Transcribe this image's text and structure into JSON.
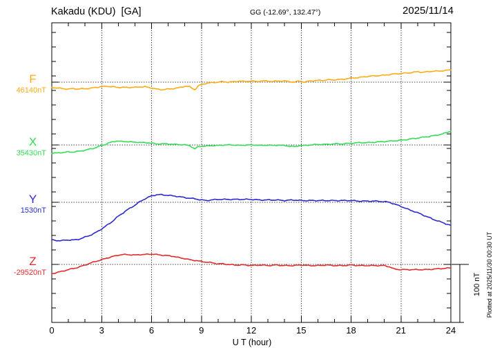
{
  "header": {
    "title": "Kakadu (KDU)  [GA]",
    "coordinates": "GG (-12.69°, 132.47°)",
    "date": "2025/11/14"
  },
  "footer": {
    "xlabel": "U T (hour)"
  },
  "side": {
    "scale_label": "100 nT",
    "plotted_note": "Plotted at 2025/11/30 00:30 UT"
  },
  "chart_data": {
    "type": "line",
    "title": "Kakadu (KDU) [GA] magnetogram",
    "station": "Kakadu (KDU)",
    "agency": "GA",
    "date": "2025/11/14",
    "coordinates": "GG (-12.69°, 132.47°)",
    "xlabel": "U T (hour)",
    "x_range": [
      0,
      24
    ],
    "x_ticks": [
      0,
      3,
      6,
      9,
      12,
      15,
      18,
      21,
      24
    ],
    "x_minor_tick_hours": 1,
    "grid": "dotted vertical lines every 3 hours; dotted horizontal baseline per channel",
    "legend_position": "left margin channel labels",
    "y_unit": "nT offset from channel baseline",
    "y_tick_spacing_nT": 25,
    "scale_bar_nT": 100,
    "series": [
      {
        "name": "F",
        "baseline_label": "46140nT",
        "baseline_nT": 46140,
        "color": "#FFAA11",
        "points": [
          [
            0,
            -9
          ],
          [
            0.3,
            -10
          ],
          [
            0.6,
            -11
          ],
          [
            1,
            -12
          ],
          [
            1.3,
            -11
          ],
          [
            1.6,
            -12
          ],
          [
            2,
            -11
          ],
          [
            2.3,
            -11
          ],
          [
            2.6,
            -9
          ],
          [
            3,
            -8
          ],
          [
            3.3,
            -7
          ],
          [
            3.6,
            -8
          ],
          [
            4,
            -9
          ],
          [
            4.3,
            -9
          ],
          [
            4.6,
            -9
          ],
          [
            5,
            -9
          ],
          [
            5.3,
            -8
          ],
          [
            5.6,
            -8
          ],
          [
            6,
            -10
          ],
          [
            6.3,
            -12
          ],
          [
            6.6,
            -13
          ],
          [
            7,
            -12
          ],
          [
            7.3,
            -11
          ],
          [
            7.6,
            -10
          ],
          [
            8,
            -7
          ],
          [
            8.3,
            -8
          ],
          [
            8.6,
            -13
          ],
          [
            8.8,
            -7
          ],
          [
            9,
            -4
          ],
          [
            9.3,
            -2
          ],
          [
            9.6,
            -1
          ],
          [
            10,
            0
          ],
          [
            10.3,
            1
          ],
          [
            10.6,
            0
          ],
          [
            11,
            1
          ],
          [
            11.3,
            2
          ],
          [
            11.6,
            1
          ],
          [
            12,
            2
          ],
          [
            12.3,
            1
          ],
          [
            12.6,
            2
          ],
          [
            13,
            2
          ],
          [
            13.3,
            1
          ],
          [
            13.6,
            2
          ],
          [
            14,
            2
          ],
          [
            14.3,
            1
          ],
          [
            14.6,
            0
          ],
          [
            14.9,
            2
          ],
          [
            15.2,
            0
          ],
          [
            15.5,
            2
          ],
          [
            16,
            3
          ],
          [
            16.3,
            3
          ],
          [
            16.6,
            4
          ],
          [
            17,
            4
          ],
          [
            17.5,
            5
          ],
          [
            18,
            7
          ],
          [
            18.5,
            8
          ],
          [
            19,
            10
          ],
          [
            19.5,
            11
          ],
          [
            20,
            12
          ],
          [
            20.5,
            14
          ],
          [
            21,
            15
          ],
          [
            21.5,
            16
          ],
          [
            22,
            18
          ],
          [
            22.3,
            17
          ],
          [
            22.6,
            18
          ],
          [
            23,
            19
          ],
          [
            23.3,
            19
          ],
          [
            23.6,
            20
          ],
          [
            24,
            21
          ]
        ]
      },
      {
        "name": "X",
        "baseline_label": "35430nT",
        "baseline_nT": 35430,
        "color": "#33DD55",
        "points": [
          [
            0,
            -14
          ],
          [
            0.3,
            -14
          ],
          [
            0.6,
            -13
          ],
          [
            1,
            -12
          ],
          [
            1.3,
            -12
          ],
          [
            1.6,
            -11
          ],
          [
            2,
            -9
          ],
          [
            2.3,
            -7
          ],
          [
            2.6,
            -5
          ],
          [
            3,
            -1
          ],
          [
            3.3,
            2
          ],
          [
            3.6,
            5
          ],
          [
            3.9,
            7
          ],
          [
            4.2,
            6
          ],
          [
            4.5,
            6
          ],
          [
            4.8,
            5
          ],
          [
            5.1,
            5
          ],
          [
            5.4,
            4
          ],
          [
            5.7,
            4
          ],
          [
            6,
            3
          ],
          [
            6.3,
            2
          ],
          [
            6.6,
            2
          ],
          [
            7,
            2
          ],
          [
            7.3,
            1
          ],
          [
            7.6,
            1
          ],
          [
            8,
            0
          ],
          [
            8.3,
            -1
          ],
          [
            8.6,
            -7
          ],
          [
            8.8,
            -3
          ],
          [
            9,
            -2
          ],
          [
            9.3,
            -2
          ],
          [
            9.6,
            -1
          ],
          [
            10,
            -1
          ],
          [
            10.3,
            0
          ],
          [
            10.6,
            0
          ],
          [
            11,
            0
          ],
          [
            11.3,
            -1
          ],
          [
            11.6,
            0
          ],
          [
            12,
            0
          ],
          [
            12.3,
            0
          ],
          [
            12.6,
            -1
          ],
          [
            13,
            0
          ],
          [
            13.3,
            -1
          ],
          [
            13.6,
            0
          ],
          [
            14,
            -1
          ],
          [
            14.3,
            -2
          ],
          [
            14.6,
            -3
          ],
          [
            14.9,
            -1
          ],
          [
            15.2,
            -1
          ],
          [
            15.5,
            0
          ],
          [
            16,
            1
          ],
          [
            16.5,
            1
          ],
          [
            17,
            2
          ],
          [
            17.5,
            2
          ],
          [
            18,
            3
          ],
          [
            18.5,
            4
          ],
          [
            19,
            4
          ],
          [
            19.5,
            5
          ],
          [
            20,
            6
          ],
          [
            20.5,
            7
          ],
          [
            21,
            8
          ],
          [
            21.5,
            10
          ],
          [
            22,
            12
          ],
          [
            22.5,
            14
          ],
          [
            23,
            16
          ],
          [
            23.5,
            19
          ],
          [
            23.8,
            22
          ],
          [
            24,
            24
          ]
        ]
      },
      {
        "name": "Y",
        "baseline_label": "1530nT",
        "baseline_nT": 1530,
        "color": "#2A2ACC",
        "points": [
          [
            0,
            -65
          ],
          [
            0.3,
            -66
          ],
          [
            0.6,
            -66
          ],
          [
            1,
            -65
          ],
          [
            1.3,
            -65
          ],
          [
            1.6,
            -64
          ],
          [
            2,
            -60
          ],
          [
            2.3,
            -57
          ],
          [
            2.6,
            -53
          ],
          [
            3,
            -46
          ],
          [
            3.3,
            -40
          ],
          [
            3.6,
            -34
          ],
          [
            4,
            -24
          ],
          [
            4.3,
            -18
          ],
          [
            4.6,
            -12
          ],
          [
            5,
            -5
          ],
          [
            5.3,
            1
          ],
          [
            5.6,
            6
          ],
          [
            6,
            11
          ],
          [
            6.3,
            13
          ],
          [
            6.6,
            13
          ],
          [
            7,
            12
          ],
          [
            7.3,
            11
          ],
          [
            7.6,
            10
          ],
          [
            8,
            8
          ],
          [
            8.3,
            7
          ],
          [
            8.6,
            6
          ],
          [
            9,
            4
          ],
          [
            9.3,
            3
          ],
          [
            9.6,
            4
          ],
          [
            10,
            5
          ],
          [
            10.5,
            5
          ],
          [
            11,
            5
          ],
          [
            11.5,
            5
          ],
          [
            12,
            5
          ],
          [
            12.5,
            4
          ],
          [
            13,
            4
          ],
          [
            13.5,
            4
          ],
          [
            14,
            3
          ],
          [
            14.5,
            4
          ],
          [
            15,
            3
          ],
          [
            15.5,
            3
          ],
          [
            16,
            3
          ],
          [
            16.5,
            3
          ],
          [
            17,
            3
          ],
          [
            17.5,
            3
          ],
          [
            18,
            3
          ],
          [
            18.5,
            2
          ],
          [
            19,
            2
          ],
          [
            19.5,
            2
          ],
          [
            20,
            1
          ],
          [
            20.3,
            0
          ],
          [
            20.6,
            -3
          ],
          [
            21,
            -7
          ],
          [
            21.5,
            -13
          ],
          [
            22,
            -18
          ],
          [
            22.5,
            -24
          ],
          [
            23,
            -30
          ],
          [
            23.5,
            -35
          ],
          [
            24,
            -40
          ]
        ]
      },
      {
        "name": "Z",
        "baseline_label": "-29520nT",
        "baseline_nT": -29520,
        "color": "#E32A2A",
        "points": [
          [
            0,
            -16
          ],
          [
            0.3,
            -14
          ],
          [
            0.6,
            -12
          ],
          [
            1,
            -9
          ],
          [
            1.3,
            -7
          ],
          [
            1.6,
            -5
          ],
          [
            2,
            -1
          ],
          [
            2.3,
            2
          ],
          [
            2.6,
            5
          ],
          [
            3,
            8
          ],
          [
            3.3,
            11
          ],
          [
            3.6,
            13
          ],
          [
            4,
            16
          ],
          [
            4.3,
            17
          ],
          [
            4.6,
            17
          ],
          [
            5,
            16
          ],
          [
            5.3,
            17
          ],
          [
            5.6,
            17
          ],
          [
            6,
            18
          ],
          [
            6.3,
            17
          ],
          [
            6.6,
            16
          ],
          [
            7,
            15
          ],
          [
            7.3,
            14
          ],
          [
            7.6,
            12
          ],
          [
            8,
            10
          ],
          [
            8.3,
            8
          ],
          [
            8.6,
            7
          ],
          [
            9,
            5
          ],
          [
            9.3,
            4
          ],
          [
            9.6,
            3
          ],
          [
            10,
            1
          ],
          [
            10.3,
            1
          ],
          [
            10.6,
            0
          ],
          [
            11,
            -1
          ],
          [
            11.3,
            -1
          ],
          [
            11.6,
            -1
          ],
          [
            12,
            -2
          ],
          [
            12.5,
            -1
          ],
          [
            13,
            -2
          ],
          [
            13.5,
            -1
          ],
          [
            14,
            -2
          ],
          [
            14.5,
            -2
          ],
          [
            15,
            -1
          ],
          [
            15.5,
            -2
          ],
          [
            16,
            -2
          ],
          [
            16.5,
            -1
          ],
          [
            17,
            -2
          ],
          [
            17.5,
            -2
          ],
          [
            18,
            -1
          ],
          [
            18.5,
            -2
          ],
          [
            19,
            -2
          ],
          [
            19.5,
            -2
          ],
          [
            20,
            -2
          ],
          [
            20.3,
            -4
          ],
          [
            20.6,
            -8
          ],
          [
            21,
            -9
          ],
          [
            21.5,
            -9
          ],
          [
            22,
            -9
          ],
          [
            22.5,
            -9
          ],
          [
            23,
            -8
          ],
          [
            23.5,
            -7
          ],
          [
            24,
            -6
          ]
        ]
      }
    ]
  }
}
